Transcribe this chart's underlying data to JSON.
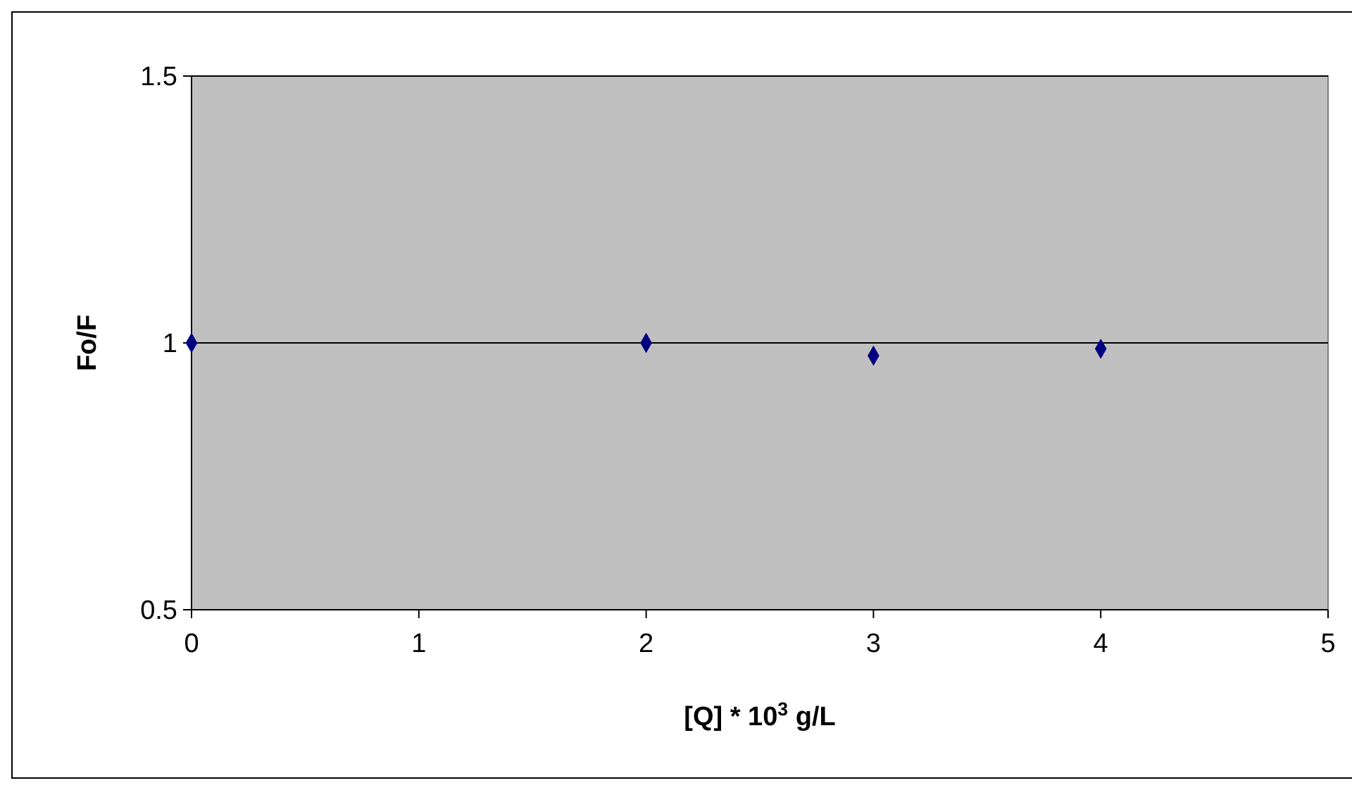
{
  "chart_data": {
    "type": "scatter",
    "xlabel": "[Q] * 10$^{3}$ g/L",
    "ylabel": "Fo/F",
    "x": [
      0,
      2,
      3,
      4
    ],
    "series": [
      {
        "color": "#000080",
        "values": [
          1,
          1,
          0.976,
          0.989
        ]
      }
    ],
    "xlim": [
      0,
      5
    ],
    "xticks": [
      0,
      1,
      2,
      3,
      4,
      5
    ],
    "ylim": [
      0.5,
      1.5
    ],
    "yticks": [
      0.5,
      1,
      1.5
    ],
    "grid": "y",
    "marker": "diamond"
  }
}
